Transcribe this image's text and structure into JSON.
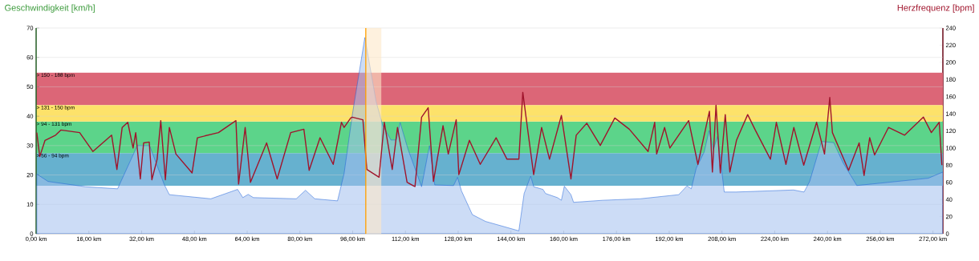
{
  "chart_data": {
    "type": "line",
    "ylabel": "Geschwindigkeit [km/h]",
    "y2label": "Herzfrequenz [bpm]",
    "xlim": [
      0,
      275
    ],
    "ylim": [
      0,
      70
    ],
    "y2lim": [
      0,
      240
    ],
    "xticks": [
      {
        "value": 0,
        "label": "0,00 km"
      },
      {
        "value": 16,
        "label": "16,00 km"
      },
      {
        "value": 32,
        "label": "32,00 km"
      },
      {
        "value": 48,
        "label": "48,00 km"
      },
      {
        "value": 64,
        "label": "64,00 km"
      },
      {
        "value": 80,
        "label": "80,00 km"
      },
      {
        "value": 96,
        "label": "96,00 km"
      },
      {
        "value": 112,
        "label": "112,00 km"
      },
      {
        "value": 128,
        "label": "128,00 km"
      },
      {
        "value": 144,
        "label": "144,00 km"
      },
      {
        "value": 160,
        "label": "160,00 km"
      },
      {
        "value": 176,
        "label": "176,00 km"
      },
      {
        "value": 192,
        "label": "192,00 km"
      },
      {
        "value": 208,
        "label": "208,00 km"
      },
      {
        "value": 224,
        "label": "224,00 km"
      },
      {
        "value": 240,
        "label": "240,00 km"
      },
      {
        "value": 256,
        "label": "256,00 km"
      },
      {
        "value": 272,
        "label": "272,00 km"
      }
    ],
    "yticks": [
      0,
      10,
      20,
      30,
      40,
      50,
      60,
      70
    ],
    "y2ticks": [
      0,
      20,
      40,
      60,
      80,
      100,
      120,
      140,
      160,
      180,
      200,
      220,
      240
    ],
    "grid": "y",
    "series": [
      {
        "type": "area",
        "color": "#1a5fd8",
        "x": [
          0.2,
          3.6,
          15,
          24.7,
          26.7,
          30.7,
          34.4,
          38.8,
          40.4,
          53.0,
          61.1,
          62.7,
          64.3,
          65.9,
          78.9,
          81.7,
          84.5,
          91.4,
          93.4,
          95.9,
          99.7,
          103.1,
          105.1,
          107.6,
          109.2,
          110.4,
          112.8,
          116.9,
          119.3,
          120.9,
          126.6,
          127.8,
          129.0,
          132.3,
          136.3,
          146.4,
          148.0,
          150.0,
          150.9,
          153.7,
          154.5,
          158.1,
          159.3,
          160.2,
          162.2,
          163.0,
          171.9,
          183.2,
          194.9,
          197.4,
          198.7,
          200.2,
          202.6,
          204.1,
          205.4,
          206.7,
          208.7,
          212.3,
          229.7,
          232.9,
          234.6,
          238.2,
          241.9,
          244.7,
          248.9,
          270.6,
          275
        ],
        "values": [
          20.3,
          17.8,
          16.0,
          15.3,
          20.2,
          30.0,
          30.0,
          16.9,
          13.3,
          11.9,
          15.1,
          12.3,
          13.4,
          12.3,
          11.9,
          14.8,
          11.9,
          11.2,
          20.5,
          40.5,
          66.8,
          45.0,
          36.9,
          31.9,
          31.9,
          37.8,
          28.7,
          16.0,
          30.0,
          16.6,
          16.4,
          19.2,
          14.6,
          6.5,
          4.2,
          1.0,
          13.7,
          19.6,
          16.0,
          15.1,
          13.7,
          12.3,
          11.4,
          16.2,
          13.3,
          10.7,
          11.4,
          11.9,
          13.3,
          16.3,
          15.3,
          22.3,
          27.8,
          35.1,
          28.7,
          33.2,
          14.2,
          14.2,
          14.9,
          14.2,
          17.8,
          31.4,
          31.0,
          24.2,
          16.4,
          18.9,
          21.0
        ]
      },
      {
        "axis": "y2",
        "color": "#a0142c",
        "x": [
          0.2,
          1.1,
          2.7,
          5.9,
          7.5,
          13.2,
          17.2,
          22.9,
          24.5,
          26.1,
          27.8,
          29.4,
          30.2,
          31.6,
          32.6,
          34.3,
          35.1,
          36.7,
          37.8,
          39.2,
          40.4,
          42.4,
          47.3,
          48.9,
          55.3,
          60.6,
          61.4,
          63.4,
          65.0,
          69.9,
          73.1,
          77.2,
          81.2,
          82.8,
          86.1,
          90.1,
          92.6,
          93.4,
          95.4,
          95.9,
          99.1,
          100.3,
          104.0,
          105.6,
          108.0,
          109.6,
          112.5,
          114.9,
          116.9,
          118.9,
          120.5,
          123.4,
          125.0,
          127.4,
          128.2,
          131.4,
          134.7,
          139.5,
          142.8,
          146.4,
          147.6,
          149.2,
          150.9,
          153.3,
          155.7,
          159.3,
          162.2,
          163.8,
          167.0,
          171.1,
          175.5,
          179.9,
          185.6,
          187.6,
          188.2,
          190.6,
          192.2,
          197.9,
          200.7,
          204.2,
          205.1,
          206.2,
          207.5,
          209.0,
          210.4,
          212.4,
          215.8,
          218.1,
          222.7,
          224.5,
          227.4,
          229.8,
          232.8,
          236.7,
          239.1,
          240.7,
          241.5,
          246.4,
          249.6,
          251.1,
          252.8,
          254.3,
          258.5,
          263.4,
          269.1,
          271.5,
          273.9,
          274.7
        ],
        "values": [
          118,
          90,
          109,
          115,
          121,
          118,
          96,
          115,
          75,
          124,
          130,
          100,
          118,
          64,
          106,
          107,
          63,
          87,
          132,
          63,
          124,
          93,
          71,
          112,
          118,
          132,
          58,
          124,
          60,
          106,
          64,
          118,
          122,
          74,
          112,
          81,
          130,
          124,
          135,
          136,
          133,
          75,
          66,
          130,
          75,
          124,
          60,
          55,
          136,
          147,
          61,
          126,
          93,
          133,
          69,
          109,
          81,
          112,
          87,
          87,
          165,
          118,
          69,
          124,
          87,
          138,
          64,
          115,
          129,
          103,
          135,
          122,
          96,
          130,
          93,
          124,
          100,
          132,
          81,
          143,
          72,
          150,
          71,
          139,
          72,
          109,
          139,
          121,
          87,
          130,
          81,
          124,
          80,
          130,
          93,
          159,
          118,
          74,
          106,
          68,
          112,
          92,
          124,
          115,
          136,
          118,
          130,
          80
        ]
      }
    ],
    "bands": [
      {
        "axis": "y2",
        "from": 56,
        "to": 94,
        "label": "> 56 - 94 bpm",
        "color": "#66b1cf"
      },
      {
        "axis": "y2",
        "from": 94,
        "to": 131,
        "label": "> 94 - 131 bpm",
        "color": "#5cd48a"
      },
      {
        "axis": "y2",
        "from": 131,
        "to": 150,
        "label": "> 131 - 150 bpm",
        "color": "#fde26a"
      },
      {
        "axis": "y2",
        "from": 150,
        "to": 188,
        "label": "> 150 - 188 bpm",
        "color": "#dc6677"
      },
      {
        "axis": "x",
        "from": 100,
        "to": 104.7,
        "color": "#fde8c8"
      }
    ],
    "ref_lines": [
      {
        "axis": "x",
        "value": 100,
        "color": "#ffa000"
      }
    ]
  }
}
